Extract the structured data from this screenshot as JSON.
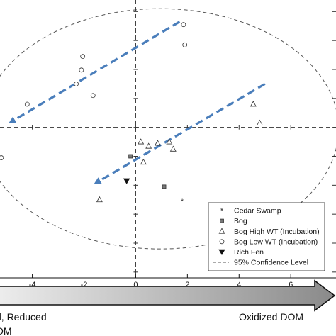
{
  "chart_data": {
    "type": "scatter",
    "xlim": [
      -5.25,
      7.75
    ],
    "ylim": [
      -5.2,
      4.4
    ],
    "x_ticks": [
      -4,
      -2,
      0,
      2,
      4,
      6
    ],
    "x_tick_labels": [
      "-4",
      "-2",
      "0",
      "2",
      "4",
      "6"
    ],
    "grid": false,
    "origin_lines": true,
    "legend_position": "bottom-right",
    "series": [
      {
        "name": "Cedar Swamp",
        "marker": "star",
        "points": [
          [
            1.8,
            -2.55
          ]
        ]
      },
      {
        "name": "Bog",
        "marker": "square",
        "points": [
          [
            -0.2,
            -1.0
          ],
          [
            1.1,
            -2.05
          ]
        ]
      },
      {
        "name": "Bog High WT (Incubation)",
        "marker": "triangle-up",
        "points": [
          [
            0.2,
            -0.5
          ],
          [
            0.5,
            -0.65
          ],
          [
            0.85,
            -0.55
          ],
          [
            1.3,
            -0.5
          ],
          [
            1.45,
            -0.75
          ],
          [
            0.3,
            -1.2
          ],
          [
            -1.4,
            -2.5
          ],
          [
            4.55,
            0.8
          ],
          [
            4.8,
            0.15
          ]
        ]
      },
      {
        "name": "Bog Low WT (Incubation)",
        "marker": "circle",
        "points": [
          [
            1.85,
            3.55
          ],
          [
            1.9,
            2.85
          ],
          [
            -2.05,
            2.45
          ],
          [
            -2.1,
            1.98
          ],
          [
            -2.3,
            1.5
          ],
          [
            -1.65,
            1.1
          ],
          [
            -4.2,
            0.8
          ],
          [
            -5.2,
            -1.05
          ]
        ]
      },
      {
        "name": "Rich Fen",
        "marker": "triangle-down",
        "points": [
          [
            -0.35,
            -1.85
          ]
        ]
      }
    ],
    "confidence_ellipse": {
      "name": "95% Confidence Level",
      "cx": 0.95,
      "cy": -0.05,
      "rx": 6.9,
      "ry": 4.15
    },
    "trend_arrows": [
      {
        "from": [
          1.7,
          3.65
        ],
        "to": [
          -4.8,
          0.2
        ]
      },
      {
        "from": [
          5.0,
          1.5
        ],
        "to": [
          -1.5,
          -1.9
        ]
      }
    ],
    "caption_left": "d, Reduced",
    "caption_left_second": "OM",
    "caption_right": "Oxidized DOM"
  },
  "colors": {
    "arrow": "#4a7ebb",
    "axis": "#111111",
    "dashed": "#555555",
    "band_light": "#ededed",
    "band_dark": "#8a8a8a"
  }
}
